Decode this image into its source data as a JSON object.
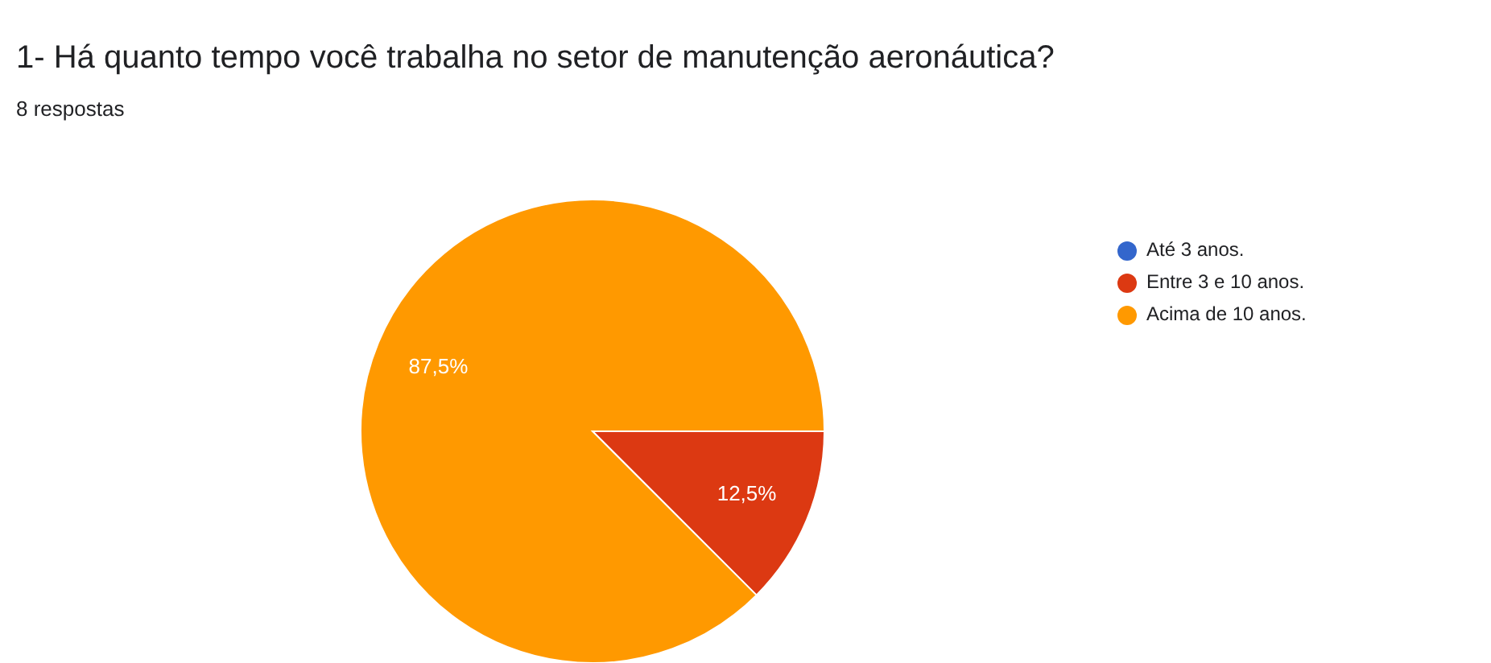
{
  "chart_data": {
    "type": "pie",
    "title": "1- Há quanto tempo você trabalha no setor de manutenção aeronáutica?",
    "subtitle": "8 respostas",
    "categories": [
      "Até 3 anos.",
      "Entre 3 e 10 anos.",
      "Acima de 10 anos."
    ],
    "values": [
      0,
      12.5,
      87.5
    ],
    "colors": [
      "#3366cc",
      "#dc3912",
      "#ff9900"
    ],
    "value_labels": [
      null,
      "12,5%",
      "87,5%"
    ],
    "legend": "right"
  }
}
